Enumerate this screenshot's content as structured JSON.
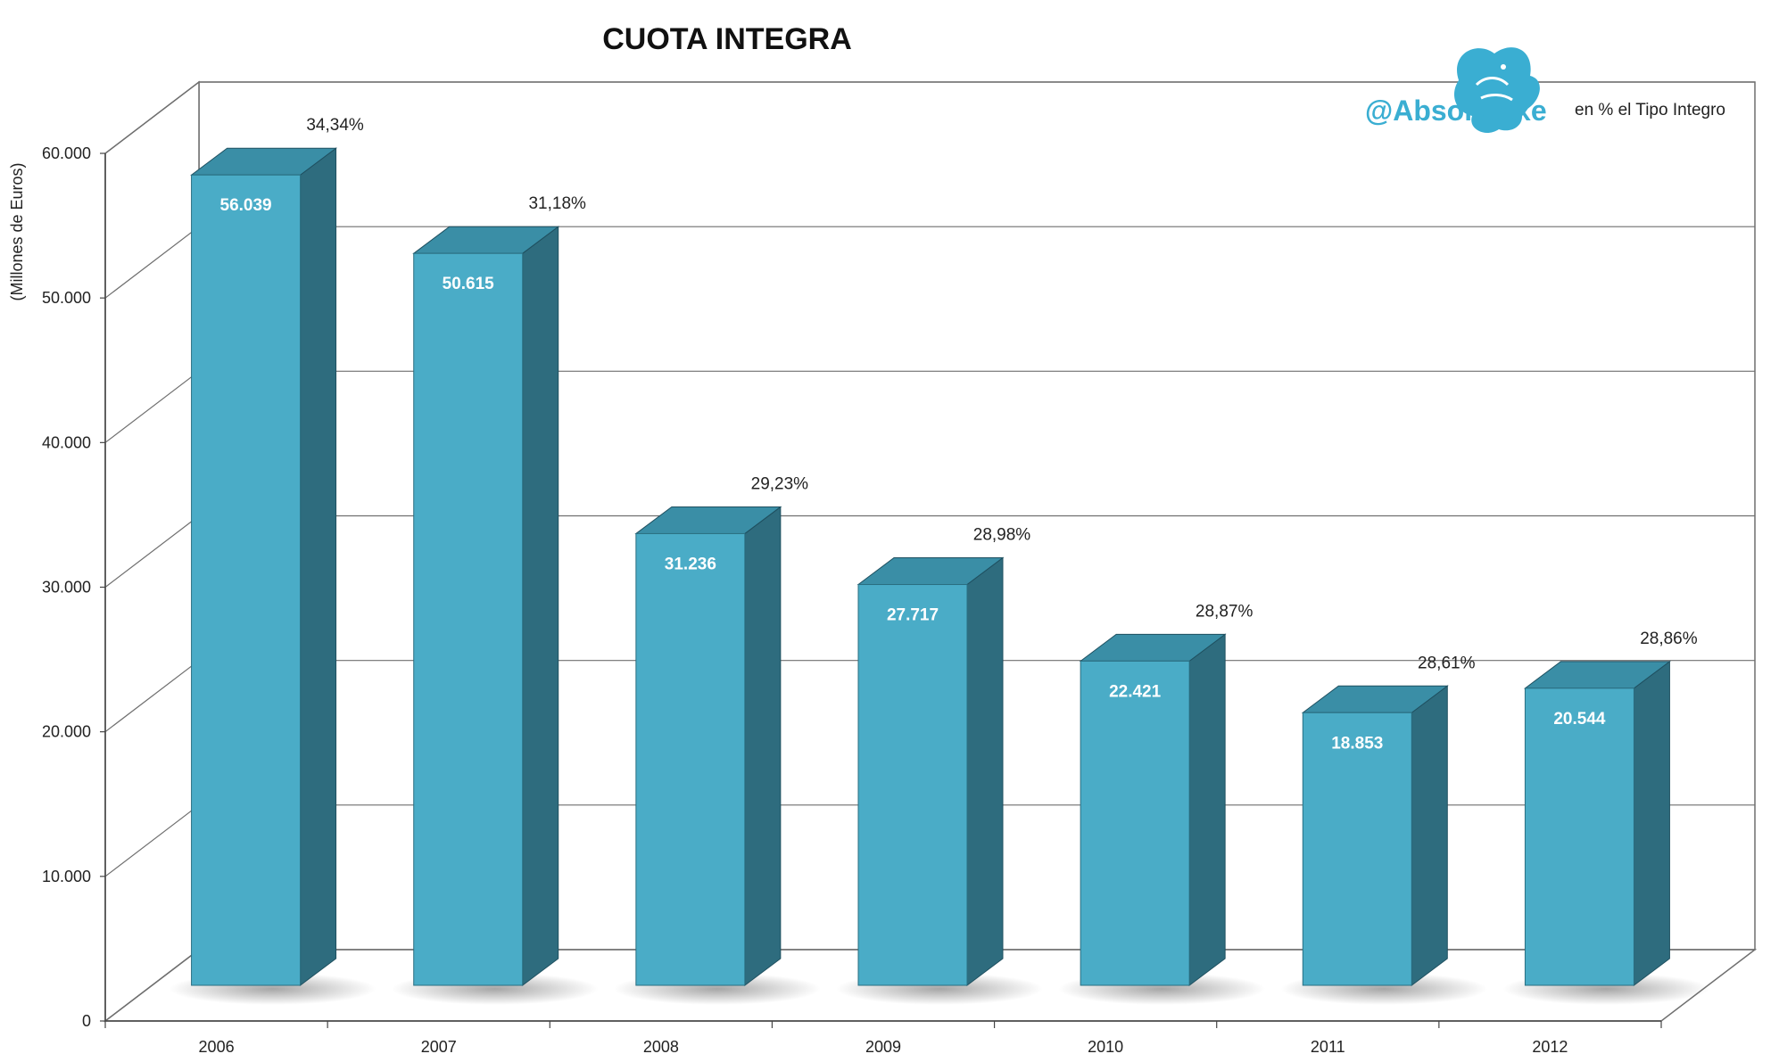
{
  "chart_data": {
    "type": "bar",
    "title": "CUOTA INTEGRA",
    "ylabel": "(Millones de Euros)",
    "note": "en % el Tipo Integro",
    "brand": "@Absolutexe",
    "categories": [
      "2006",
      "2007",
      "2008",
      "2009",
      "2010",
      "2011",
      "2012"
    ],
    "values": [
      56039,
      50615,
      31236,
      27717,
      22421,
      18853,
      20544
    ],
    "value_labels": [
      "56.039",
      "50.615",
      "31.236",
      "27.717",
      "22.421",
      "18.853",
      "20.544"
    ],
    "percent_labels": [
      "34,34%",
      "31,18%",
      "29,23%",
      "28,98%",
      "28,87%",
      "28,61%",
      "28,86%"
    ],
    "ylim": [
      0,
      60000
    ],
    "yticks": [
      0,
      10000,
      20000,
      30000,
      40000,
      50000,
      60000
    ],
    "ytick_labels": [
      "0",
      "10.000",
      "20.000",
      "30.000",
      "40.000",
      "50.000",
      "60.000"
    ],
    "grid": true,
    "style": "3d-column"
  },
  "colors": {
    "bar_front": "#4aacc7",
    "bar_side": "#2e6c7e",
    "bar_top": "#3a8ea6",
    "grid": "#6f6f6f",
    "brand": "#3aaed2"
  },
  "icons": {
    "logo": "griffin-logo-icon"
  }
}
